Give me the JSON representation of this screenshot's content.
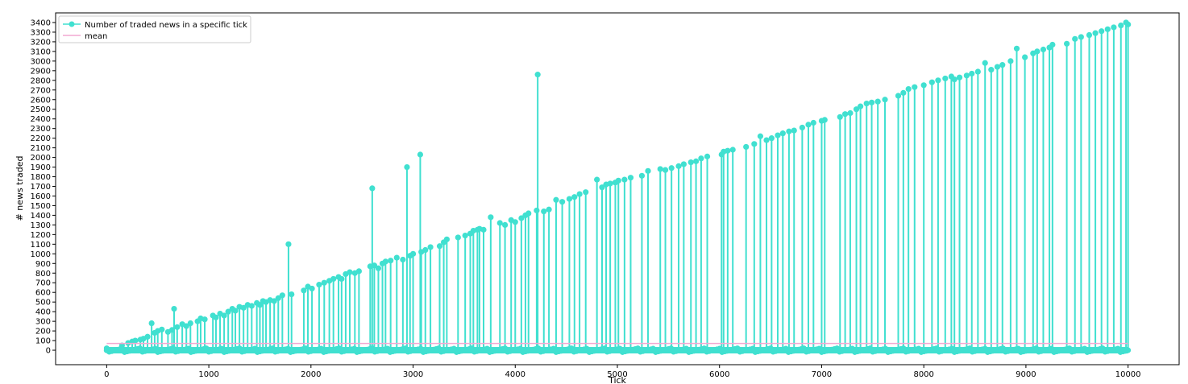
{
  "chart_data": {
    "type": "line",
    "title": "",
    "xlabel": "Tick",
    "ylabel": "# news traded",
    "xlim": [
      -500,
      10500
    ],
    "ylim": [
      -150,
      3500
    ],
    "x_ticks": [
      0,
      1000,
      2000,
      3000,
      4000,
      5000,
      6000,
      7000,
      8000,
      9000,
      10000
    ],
    "y_ticks": [
      0,
      100,
      200,
      300,
      400,
      500,
      600,
      700,
      800,
      900,
      1000,
      1100,
      1200,
      1300,
      1400,
      1500,
      1600,
      1700,
      1800,
      1900,
      2000,
      2100,
      2200,
      2300,
      2400,
      2500,
      2600,
      2700,
      2800,
      2900,
      3000,
      3100,
      3200,
      3300,
      3400
    ],
    "grid": false,
    "legend_position": "upper-left",
    "series": [
      {
        "name": "Number of traded news in a specific tick",
        "color": "#40e0d0",
        "style": "stem",
        "note_baseline": 0,
        "x": [
          0,
          150,
          210,
          250,
          280,
          330,
          360,
          400,
          440,
          470,
          500,
          540,
          600,
          640,
          660,
          690,
          740,
          780,
          820,
          890,
          920,
          960,
          1040,
          1070,
          1110,
          1150,
          1190,
          1230,
          1260,
          1300,
          1340,
          1380,
          1420,
          1470,
          1500,
          1530,
          1560,
          1600,
          1640,
          1680,
          1720,
          1780,
          1810,
          1930,
          1970,
          2010,
          2080,
          2130,
          2180,
          2220,
          2270,
          2300,
          2340,
          2380,
          2430,
          2470,
          2580,
          2600,
          2620,
          2660,
          2700,
          2730,
          2780,
          2840,
          2900,
          2940,
          2970,
          3000,
          3070,
          3080,
          3120,
          3170,
          3260,
          3300,
          3330,
          3440,
          3510,
          3560,
          3590,
          3630,
          3650,
          3690,
          3760,
          3850,
          3900,
          3960,
          4000,
          4060,
          4100,
          4130,
          4210,
          4220,
          4280,
          4330,
          4400,
          4460,
          4530,
          4580,
          4630,
          4690,
          4800,
          4850,
          4890,
          4930,
          4980,
          5010,
          5070,
          5130,
          5240,
          5300,
          5420,
          5470,
          5530,
          5600,
          5650,
          5720,
          5770,
          5820,
          5880,
          6020,
          6040,
          6080,
          6130,
          6260,
          6340,
          6400,
          6460,
          6510,
          6570,
          6620,
          6680,
          6730,
          6810,
          6870,
          6920,
          7000,
          7030,
          7180,
          7230,
          7280,
          7340,
          7380,
          7440,
          7490,
          7550,
          7620,
          7750,
          7800,
          7850,
          7910,
          8000,
          8080,
          8140,
          8210,
          8270,
          8300,
          8350,
          8420,
          8470,
          8530,
          8600,
          8660,
          8720,
          8770,
          8850,
          8910,
          8990,
          9070,
          9110,
          9170,
          9230,
          9260,
          9400,
          9480,
          9540,
          9620,
          9680,
          9740,
          9800,
          9860,
          9930,
          9980,
          10000
        ],
        "y": [
          0,
          50,
          75,
          90,
          100,
          110,
          120,
          140,
          280,
          180,
          200,
          215,
          190,
          210,
          430,
          240,
          270,
          250,
          280,
          300,
          330,
          320,
          360,
          340,
          380,
          360,
          400,
          430,
          410,
          450,
          440,
          470,
          460,
          490,
          470,
          510,
          500,
          520,
          510,
          540,
          570,
          1100,
          580,
          620,
          660,
          640,
          680,
          700,
          720,
          740,
          760,
          740,
          790,
          810,
          800,
          820,
          870,
          1680,
          880,
          850,
          900,
          920,
          930,
          960,
          940,
          1900,
          980,
          1000,
          2030,
          1020,
          1040,
          1070,
          1080,
          1120,
          1150,
          1170,
          1190,
          1210,
          1240,
          1250,
          1260,
          1250,
          1380,
          1320,
          1300,
          1350,
          1330,
          1370,
          1400,
          1420,
          1450,
          2860,
          1440,
          1460,
          1560,
          1540,
          1570,
          1590,
          1620,
          1640,
          1770,
          1690,
          1720,
          1730,
          1740,
          1760,
          1770,
          1790,
          1810,
          1860,
          1880,
          1870,
          1890,
          1910,
          1930,
          1950,
          1960,
          1990,
          2010,
          2030,
          2060,
          2070,
          2080,
          2110,
          2140,
          2220,
          2180,
          2200,
          2230,
          2250,
          2270,
          2280,
          2310,
          2340,
          2360,
          2380,
          2390,
          2420,
          2450,
          2460,
          2500,
          2530,
          2560,
          2570,
          2580,
          2600,
          2640,
          2670,
          2710,
          2730,
          2750,
          2780,
          2800,
          2820,
          2840,
          2810,
          2830,
          2850,
          2870,
          2890,
          2980,
          2910,
          2940,
          2960,
          3000,
          3130,
          3040,
          3080,
          3100,
          3120,
          3140,
          3170,
          3180,
          3230,
          3250,
          3270,
          3290,
          3310,
          3330,
          3350,
          3370,
          3400,
          3380
        ]
      },
      {
        "name": "mean",
        "color": "#f2a8d2",
        "style": "line",
        "x": [
          0,
          10000
        ],
        "y": [
          70,
          70
        ]
      }
    ]
  }
}
